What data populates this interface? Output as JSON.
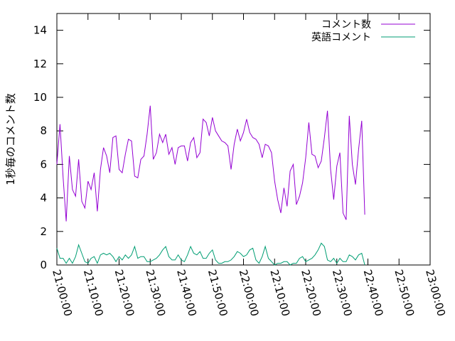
{
  "chart_data": {
    "type": "line",
    "title": "",
    "xlabel": "",
    "ylabel": "1秒毎のコメント数",
    "ylim": [
      0,
      15
    ],
    "yticks": [
      "0",
      "2",
      "4",
      "6",
      "8",
      "10",
      "12",
      "14"
    ],
    "xlim": [
      "21:00:00",
      "23:00:00"
    ],
    "xticks": [
      "21:00:00",
      "21:10:00",
      "21:20:00",
      "21:30:00",
      "21:40:00",
      "21:50:00",
      "22:00:00",
      "22:10:00",
      "22:20:00",
      "22:30:00",
      "22:40:00",
      "22:50:00",
      "23:00:00"
    ],
    "x_step_minutes": 1,
    "x_start": "21:00:00",
    "grid": false,
    "legend_position": "top-right",
    "series": [
      {
        "name": "コメント数",
        "color": "#9400d3",
        "values": [
          6.0,
          8.4,
          5.2,
          2.6,
          6.5,
          4.5,
          4.1,
          6.3,
          3.8,
          3.4,
          5.0,
          4.5,
          5.5,
          3.2,
          5.7,
          7.0,
          6.5,
          5.5,
          7.6,
          7.7,
          5.7,
          5.5,
          6.6,
          7.5,
          7.4,
          5.3,
          5.2,
          6.3,
          6.5,
          7.8,
          9.5,
          6.3,
          6.7,
          7.8,
          7.3,
          7.8,
          6.6,
          7.0,
          6.0,
          7.0,
          7.1,
          7.1,
          6.2,
          7.3,
          7.6,
          6.4,
          6.7,
          8.7,
          8.5,
          7.7,
          8.8,
          8.0,
          7.7,
          7.4,
          7.3,
          7.1,
          5.7,
          7.2,
          8.1,
          7.4,
          7.9,
          8.7,
          7.9,
          7.6,
          7.5,
          7.2,
          6.4,
          7.2,
          7.1,
          6.7,
          5.0,
          3.9,
          3.1,
          4.6,
          3.5,
          5.6,
          6.0,
          3.6,
          4.1,
          4.9,
          6.4,
          8.5,
          6.6,
          6.5,
          5.8,
          6.2,
          7.6,
          9.2,
          5.7,
          3.9,
          5.9,
          6.7,
          3.1,
          2.7,
          8.9,
          6.0,
          4.8,
          6.9,
          8.6,
          3.0
        ]
      },
      {
        "name": "英語コメント",
        "color": "#009e73",
        "values": [
          1.0,
          0.4,
          0.4,
          0.1,
          0.4,
          0.1,
          0.5,
          1.2,
          0.7,
          0.2,
          0.1,
          0.4,
          0.5,
          0.1,
          0.6,
          0.7,
          0.6,
          0.7,
          0.5,
          0.2,
          0.5,
          0.3,
          0.6,
          0.4,
          0.6,
          1.1,
          0.4,
          0.5,
          0.5,
          0.2,
          0.2,
          0.3,
          0.4,
          0.6,
          0.9,
          1.1,
          0.5,
          0.3,
          0.3,
          0.6,
          0.3,
          0.2,
          0.6,
          1.1,
          0.7,
          0.6,
          0.8,
          0.4,
          0.4,
          0.7,
          0.9,
          0.3,
          0.1,
          0.1,
          0.2,
          0.2,
          0.3,
          0.5,
          0.8,
          0.7,
          0.5,
          0.6,
          0.9,
          1.0,
          0.3,
          0.1,
          0.5,
          1.1,
          0.4,
          0.2,
          0.0,
          0.1,
          0.1,
          0.2,
          0.2,
          0.0,
          0.1,
          0.1,
          0.4,
          0.5,
          0.2,
          0.3,
          0.4,
          0.6,
          0.9,
          1.3,
          1.1,
          0.3,
          0.2,
          0.4,
          0.1,
          0.4,
          0.2,
          0.2,
          0.6,
          0.5,
          0.3,
          0.6,
          0.7,
          0.0
        ]
      }
    ]
  }
}
